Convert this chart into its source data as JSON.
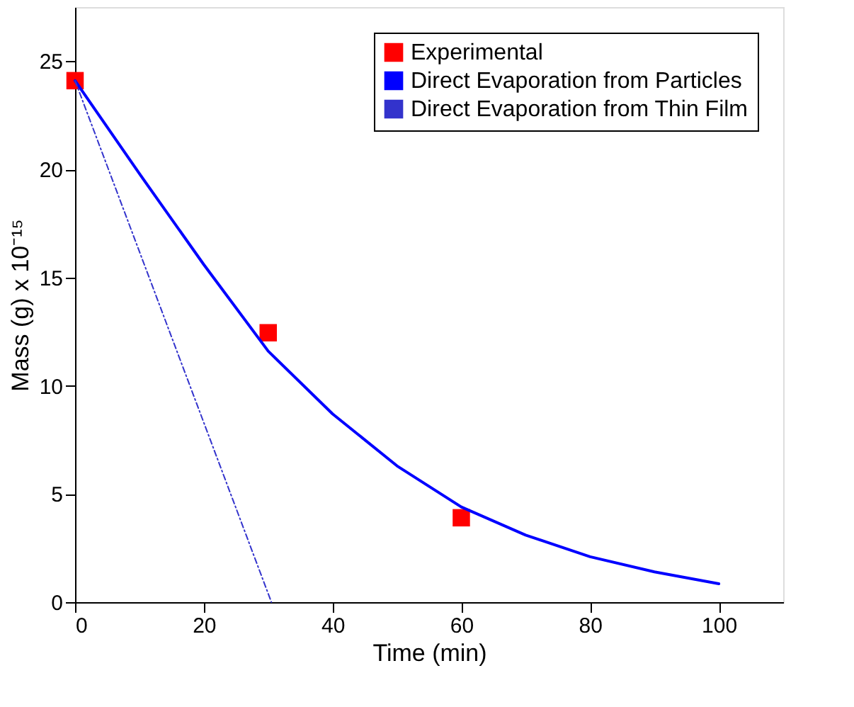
{
  "chart_data": {
    "type": "line",
    "xlabel": "Time (min)",
    "ylabel": "Mass (g) x 10⁻¹⁵",
    "xlim": [
      0,
      110
    ],
    "xticks": [
      0,
      20,
      40,
      60,
      80,
      100
    ],
    "ylim": [
      0,
      27.5
    ],
    "yticks": [
      0,
      5,
      10,
      15,
      20,
      25
    ],
    "grid": false,
    "legend": "top right",
    "series": [
      {
        "name": "Experimental",
        "type": "scatter",
        "marker": "square",
        "color": "#ff0000",
        "x": [
          0,
          30,
          60
        ],
        "values": [
          24.1,
          12.45,
          3.9
        ]
      },
      {
        "name": "Direct Evaporation from Particles",
        "line_style": "solid",
        "color": "#0000ff",
        "x": [
          0,
          10,
          20,
          30,
          40,
          50,
          60,
          70,
          80,
          90,
          100
        ],
        "values": [
          24.1,
          19.8,
          15.6,
          11.6,
          8.7,
          6.3,
          4.4,
          3.1,
          2.1,
          1.4,
          0.85
        ]
      },
      {
        "name": "Direct Evaporation from Thin Film",
        "line_style": "dotted",
        "color": "#3333cc",
        "x": [
          0,
          30.5
        ],
        "values": [
          24.1,
          0
        ]
      }
    ]
  }
}
